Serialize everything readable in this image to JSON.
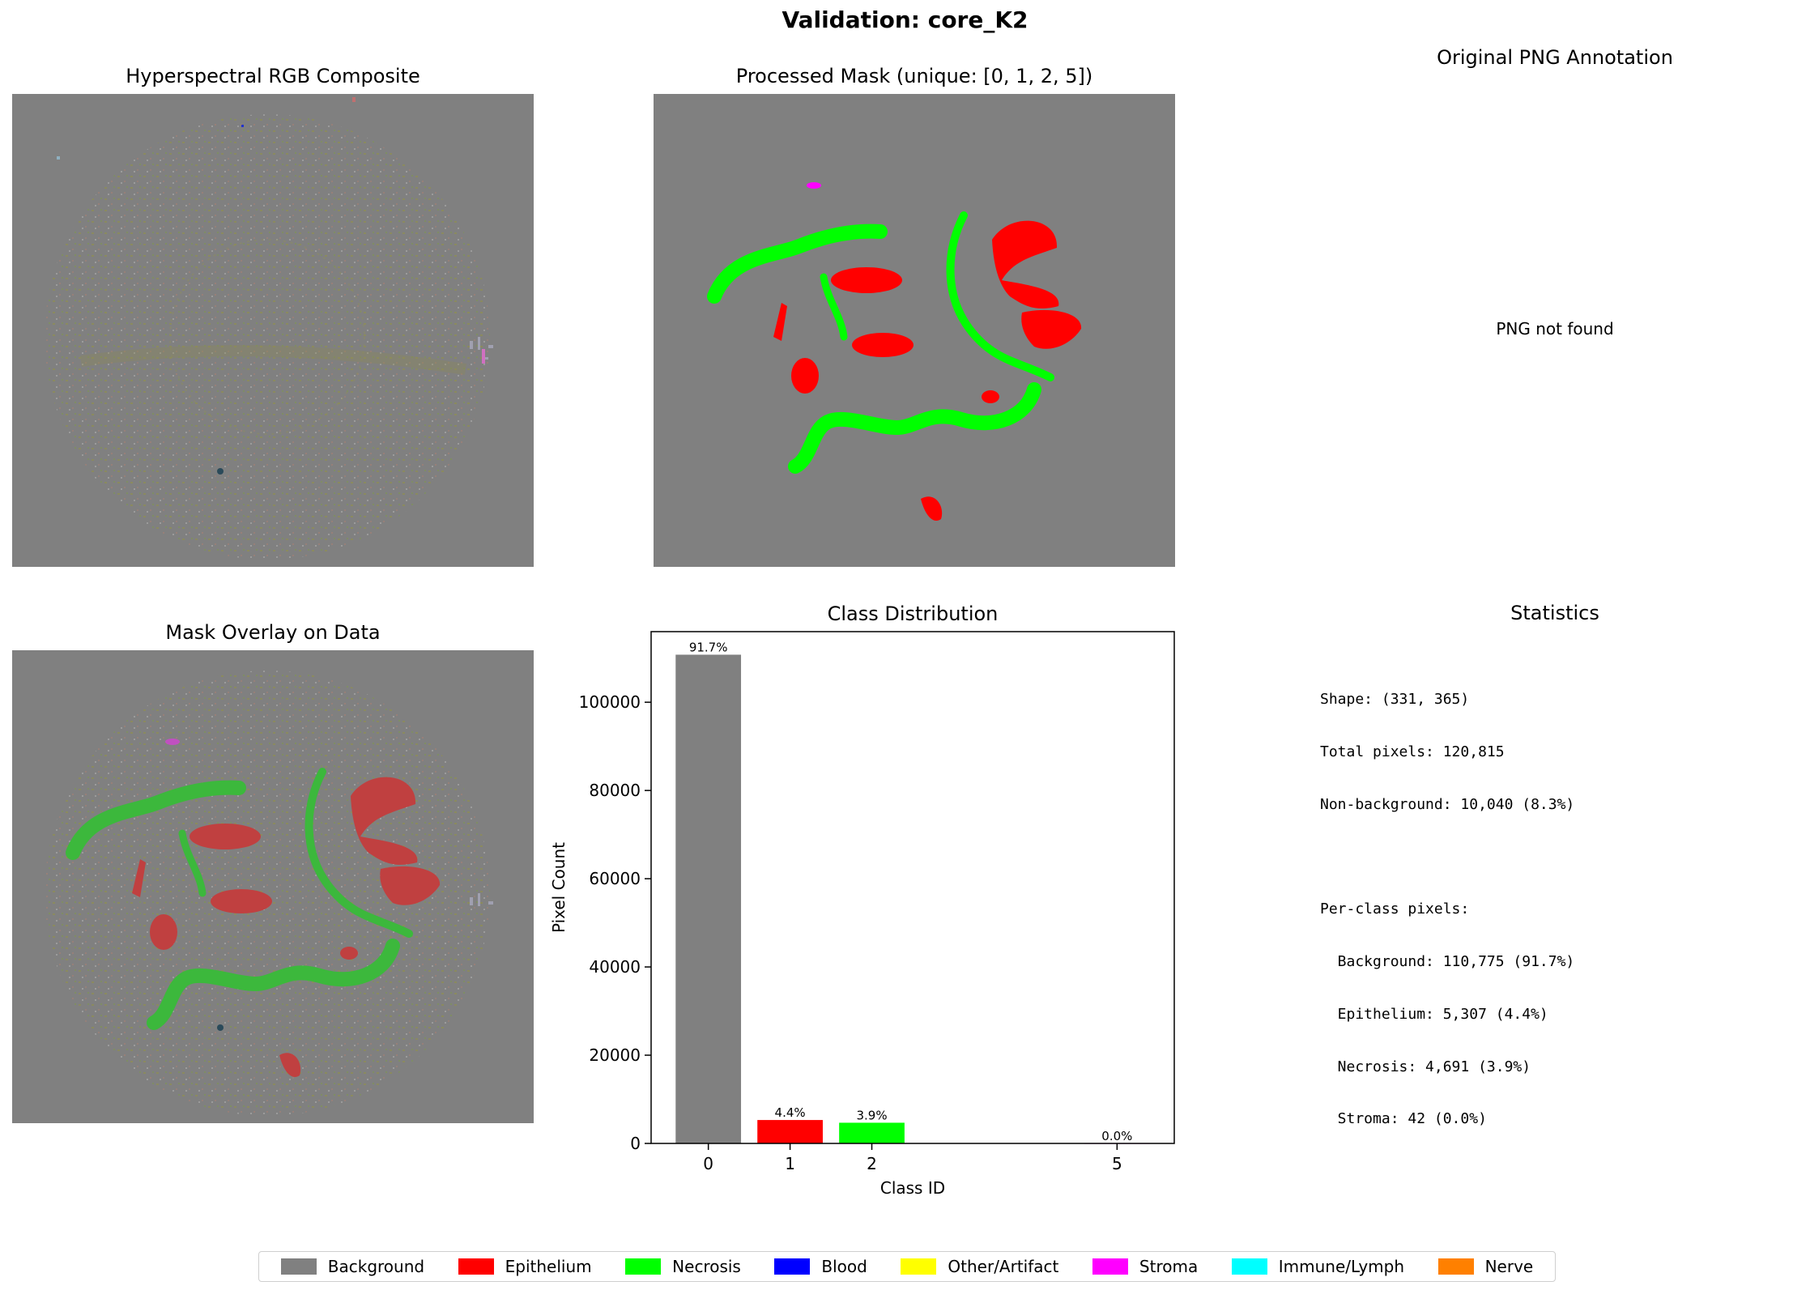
{
  "suptitle": "Validation: core_K2",
  "panels": {
    "rgb_title": "Hyperspectral RGB Composite",
    "mask_title": "Processed Mask (unique: [0, 1, 2, 5])",
    "png_title": "Original PNG Annotation",
    "png_message": "PNG not found",
    "overlay_title": "Mask Overlay on Data",
    "stats_title": "Statistics"
  },
  "statistics": {
    "shape": "Shape: (331, 365)",
    "total": "Total pixels: 120,815",
    "nonbg": "Non-background: 10,040 (8.3%)",
    "perclass_header": "Per-class pixels:",
    "lines": [
      "  Background: 110,775 (91.7%)",
      "  Epithelium: 5,307 (4.4%)",
      "  Necrosis: 4,691 (3.9%)",
      "  Stroma: 42 (0.0%)"
    ]
  },
  "colors": {
    "background": "#808080",
    "epithelium": "#ff0000",
    "necrosis": "#00ff00",
    "blood": "#0000ff",
    "artifact": "#ffff00",
    "stroma": "#ff00ff",
    "immune": "#00ffff",
    "nerve": "#ff8000"
  },
  "chart_data": {
    "type": "bar",
    "title": "Class Distribution",
    "xlabel": "Class ID",
    "ylabel": "Pixel Count",
    "categories": [
      "0",
      "1",
      "2",
      "5"
    ],
    "x": [
      0,
      1,
      2,
      5
    ],
    "values": [
      110775,
      5307,
      4691,
      42
    ],
    "labels": [
      "91.7%",
      "4.4%",
      "3.9%",
      "0.0%"
    ],
    "bar_colors": [
      "#808080",
      "#ff0000",
      "#00ff00",
      "#ff00ff"
    ],
    "ylim": [
      0,
      116000
    ],
    "yticks": [
      0,
      20000,
      40000,
      60000,
      80000,
      100000
    ],
    "ytick_labels": [
      "0",
      "20000",
      "40000",
      "60000",
      "80000",
      "100000"
    ],
    "xlim": [
      -0.7,
      5.7
    ],
    "grid": false
  },
  "legend": {
    "placement": "bottom-center",
    "items": [
      {
        "label": "Background",
        "color": "#808080"
      },
      {
        "label": "Epithelium",
        "color": "#ff0000"
      },
      {
        "label": "Necrosis",
        "color": "#00ff00"
      },
      {
        "label": "Blood",
        "color": "#0000ff"
      },
      {
        "label": "Other/Artifact",
        "color": "#ffff00"
      },
      {
        "label": "Stroma",
        "color": "#ff00ff"
      },
      {
        "label": "Immune/Lymph",
        "color": "#00ffff"
      },
      {
        "label": "Nerve",
        "color": "#ff8000"
      }
    ]
  }
}
